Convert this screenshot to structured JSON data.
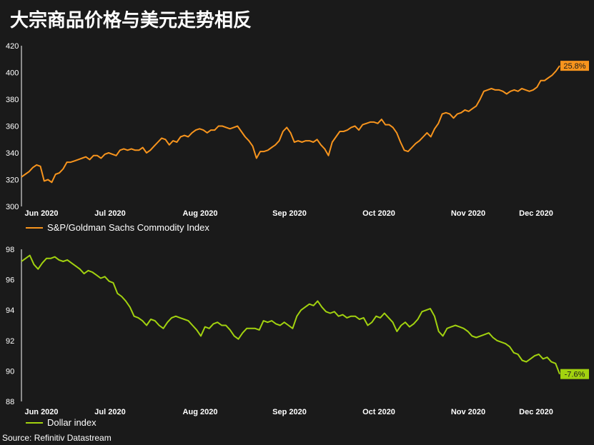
{
  "title": "大宗商品价格与美元走势相反",
  "source": "Source: Refinitiv Datastream",
  "colors": {
    "commodity": "#f7941d",
    "dollar": "#a2d20f",
    "background": "#1a1a1a",
    "text": "#ffffff"
  },
  "chart_data": [
    {
      "type": "line",
      "ylim": [
        300,
        420
      ],
      "y_ticks": [
        "300",
        "320",
        "340",
        "360",
        "380",
        "400",
        "420"
      ],
      "x_tick_labels": [
        "Jun 2020",
        "Jul 2020",
        "Aug 2020",
        "Sep 2020",
        "Oct 2020",
        "Nov 2020",
        "Dec 2020"
      ],
      "series": [
        {
          "name": "S&P/Goldman Sachs Commodity Index",
          "color": "#f7941d",
          "end_label": "25.8%",
          "values": [
            322,
            324,
            326,
            329,
            331,
            330,
            319,
            320,
            318,
            324,
            325,
            328,
            333,
            333,
            334,
            335,
            336,
            337,
            335,
            338,
            338,
            336,
            339,
            340,
            339,
            338,
            342,
            343,
            342,
            343,
            342,
            342,
            344,
            340,
            342,
            345,
            348,
            351,
            350,
            346,
            349,
            348,
            352,
            353,
            352,
            355,
            357,
            358,
            357,
            355,
            357,
            357,
            360,
            360,
            359,
            358,
            359,
            360,
            356,
            352,
            349,
            345,
            336,
            341,
            341,
            342,
            344,
            346,
            349,
            356,
            359,
            355,
            348,
            349,
            348,
            349,
            349,
            348,
            350,
            346,
            343,
            338,
            348,
            352,
            356,
            356,
            357,
            359,
            360,
            357,
            361,
            362,
            363,
            363,
            362,
            365,
            361,
            361,
            359,
            355,
            348,
            342,
            341,
            344,
            347,
            349,
            352,
            355,
            352,
            358,
            362,
            369,
            370,
            369,
            366,
            369,
            370,
            372,
            371,
            373,
            375,
            380,
            386,
            387,
            388,
            387,
            387,
            386,
            384,
            386,
            387,
            386,
            388,
            387,
            386,
            387,
            389,
            394,
            394,
            396,
            398,
            401,
            405
          ]
        }
      ]
    },
    {
      "type": "line",
      "ylim": [
        88,
        98
      ],
      "y_ticks": [
        "88",
        "90",
        "92",
        "94",
        "96",
        "98"
      ],
      "x_tick_labels": [
        "Jun 2020",
        "Jul 2020",
        "Aug 2020",
        "Sep 2020",
        "Oct 2020",
        "Nov 2020",
        "Dec 2020"
      ],
      "series": [
        {
          "name": "Dollar index",
          "color": "#a2d20f",
          "end_label": "-7.6%",
          "values": [
            97.2,
            97.4,
            97.6,
            97.0,
            96.7,
            97.1,
            97.4,
            97.4,
            97.5,
            97.3,
            97.2,
            97.3,
            97.1,
            96.9,
            96.7,
            96.4,
            96.6,
            96.5,
            96.3,
            96.1,
            96.2,
            95.9,
            95.8,
            95.1,
            94.9,
            94.6,
            94.2,
            93.6,
            93.5,
            93.3,
            93.0,
            93.4,
            93.3,
            93.0,
            92.8,
            93.2,
            93.5,
            93.6,
            93.5,
            93.4,
            93.3,
            93.0,
            92.7,
            92.3,
            92.9,
            92.8,
            93.1,
            93.2,
            93.0,
            93.0,
            92.7,
            92.3,
            92.1,
            92.5,
            92.8,
            92.8,
            92.8,
            92.7,
            93.3,
            93.2,
            93.3,
            93.1,
            93.0,
            93.2,
            93.0,
            92.8,
            93.6,
            94.0,
            94.2,
            94.4,
            94.3,
            94.6,
            94.2,
            93.9,
            93.8,
            93.9,
            93.6,
            93.7,
            93.5,
            93.6,
            93.6,
            93.4,
            93.5,
            93.0,
            93.2,
            93.6,
            93.5,
            93.8,
            93.5,
            93.2,
            92.6,
            93.0,
            93.2,
            92.9,
            93.1,
            93.4,
            93.9,
            94.0,
            94.1,
            93.6,
            92.6,
            92.3,
            92.8,
            92.9,
            93.0,
            92.9,
            92.8,
            92.6,
            92.3,
            92.2,
            92.3,
            92.4,
            92.5,
            92.2,
            92.0,
            91.9,
            91.8,
            91.6,
            91.2,
            91.1,
            90.7,
            90.6,
            90.8,
            91.0,
            91.1,
            90.8,
            90.9,
            90.6,
            90.5,
            89.8
          ]
        }
      ]
    }
  ]
}
